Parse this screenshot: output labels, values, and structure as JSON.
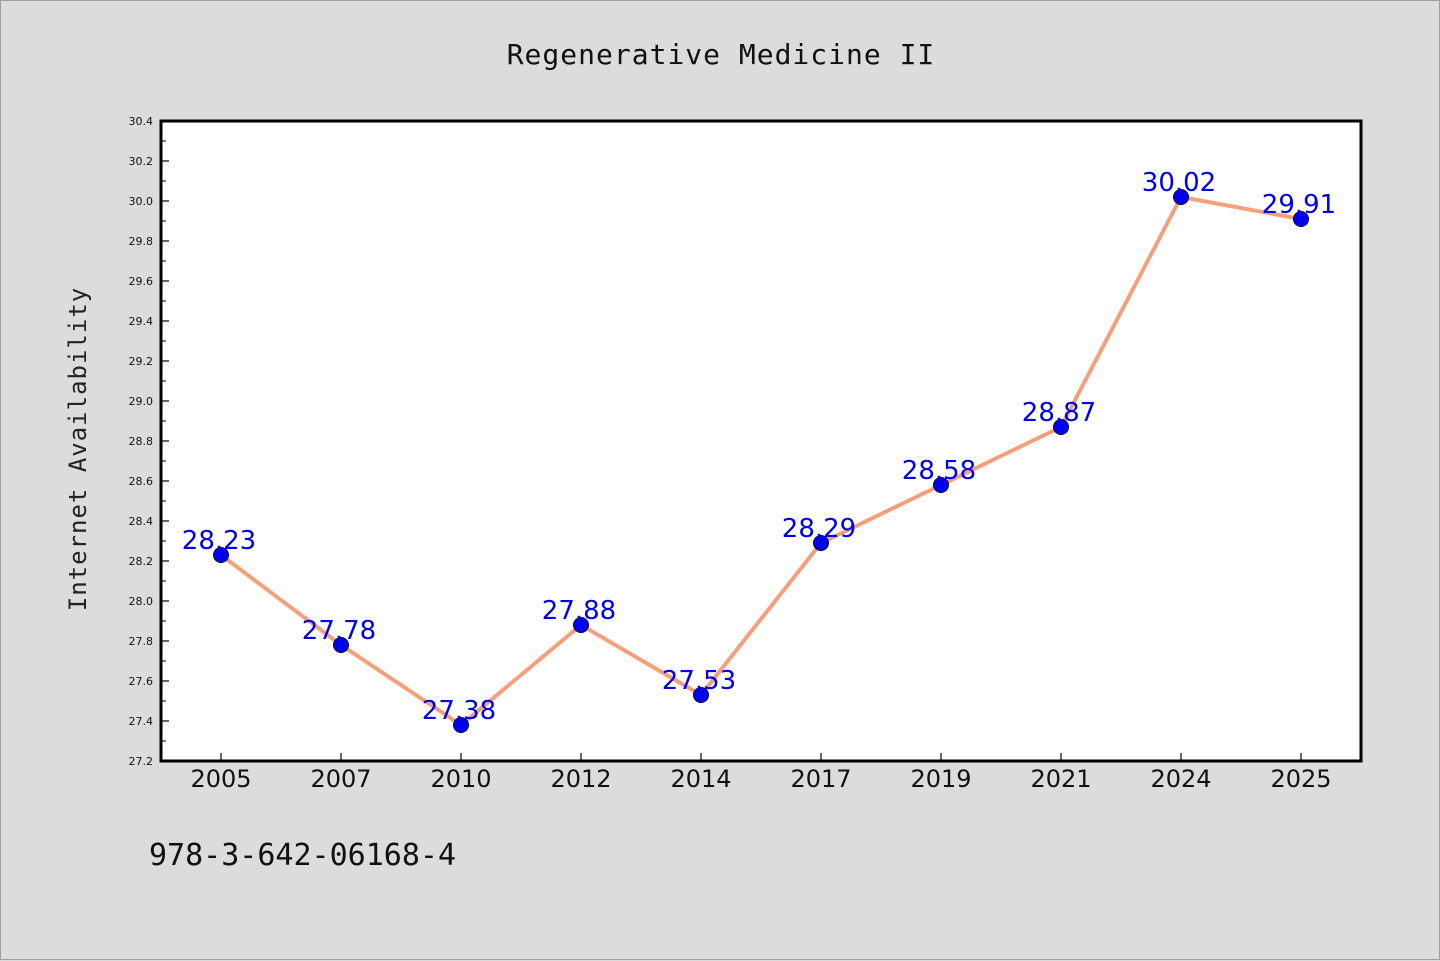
{
  "chart_data": {
    "type": "line",
    "title": "Regenerative Medicine II",
    "xlabel": "",
    "ylabel": "Internet Availability",
    "categories": [
      "2005",
      "2007",
      "2010",
      "2012",
      "2014",
      "2017",
      "2019",
      "2021",
      "2024",
      "2025"
    ],
    "series": [
      {
        "values": [
          28.23,
          27.78,
          27.38,
          27.88,
          27.53,
          28.29,
          28.58,
          28.87,
          30.02,
          29.91
        ],
        "line_color": "#f4a07a",
        "marker_color": "#0000ee",
        "data_label_color": "#0000ee"
      }
    ],
    "data_labels": [
      "28.23",
      "27.78",
      "27.38",
      "27.88",
      "27.53",
      "28.29",
      "28.58",
      "28.87",
      "30.02",
      "29.91"
    ],
    "ylim": [
      27.2,
      30.4
    ],
    "y_major_step": 0.2,
    "y_tick_labels": [
      "27.2",
      "27.4",
      "27.6",
      "27.8",
      "28.0",
      "28.2",
      "28.4",
      "28.6",
      "28.8",
      "29.0",
      "29.2",
      "29.4",
      "29.6",
      "29.8",
      "30.0",
      "30.2",
      "30.4"
    ],
    "grid": false,
    "legend": "none"
  },
  "footnote": "978-3-642-06168-4",
  "colors": {
    "background": "#dcdcdc",
    "plot_background": "#ffffff",
    "line": "#f4a07a",
    "marker": "#0000ee",
    "data_label": "#0000ee"
  }
}
